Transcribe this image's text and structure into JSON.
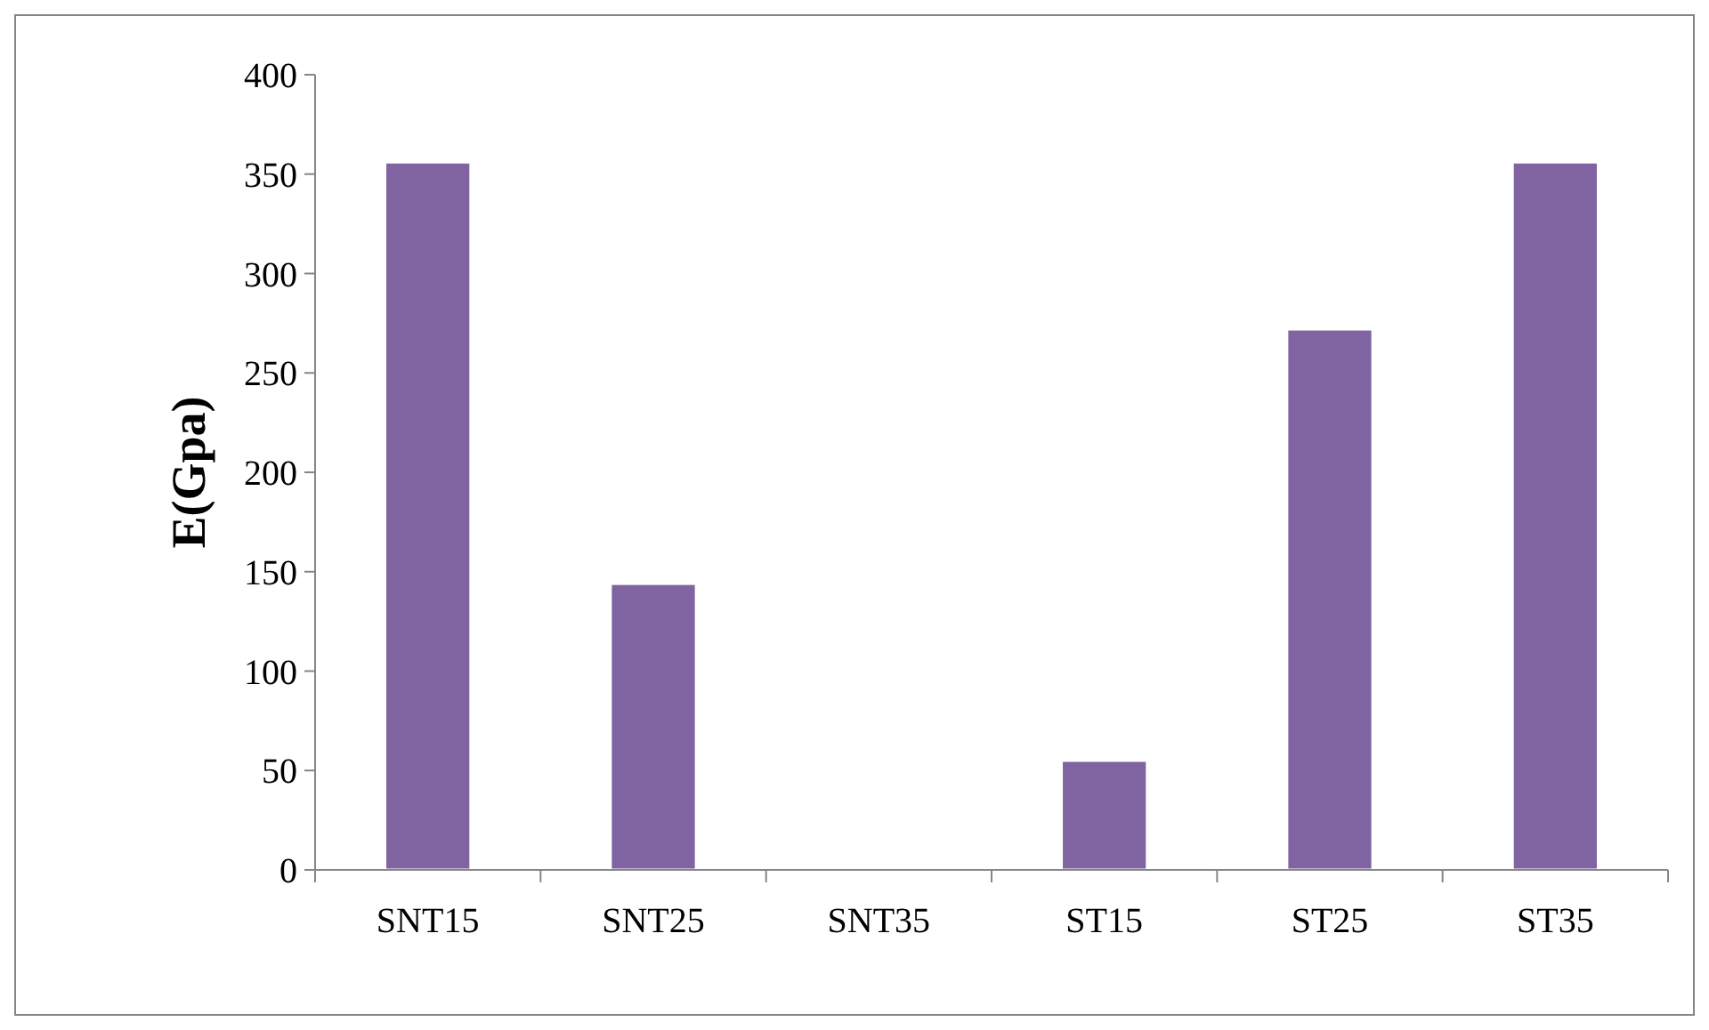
{
  "chart_data": {
    "type": "bar",
    "ylabel": "E(Gpa)",
    "categories": [
      "SNT15",
      "SNT25",
      "SNT35",
      "ST15",
      "ST25",
      "ST35"
    ],
    "values": [
      356,
      144,
      0,
      55,
      272,
      356
    ],
    "color": "#8064a2",
    "ylim": [
      0,
      400
    ],
    "yticks": [
      0,
      50,
      100,
      150,
      200,
      250,
      300,
      350,
      400
    ],
    "grid": false
  }
}
